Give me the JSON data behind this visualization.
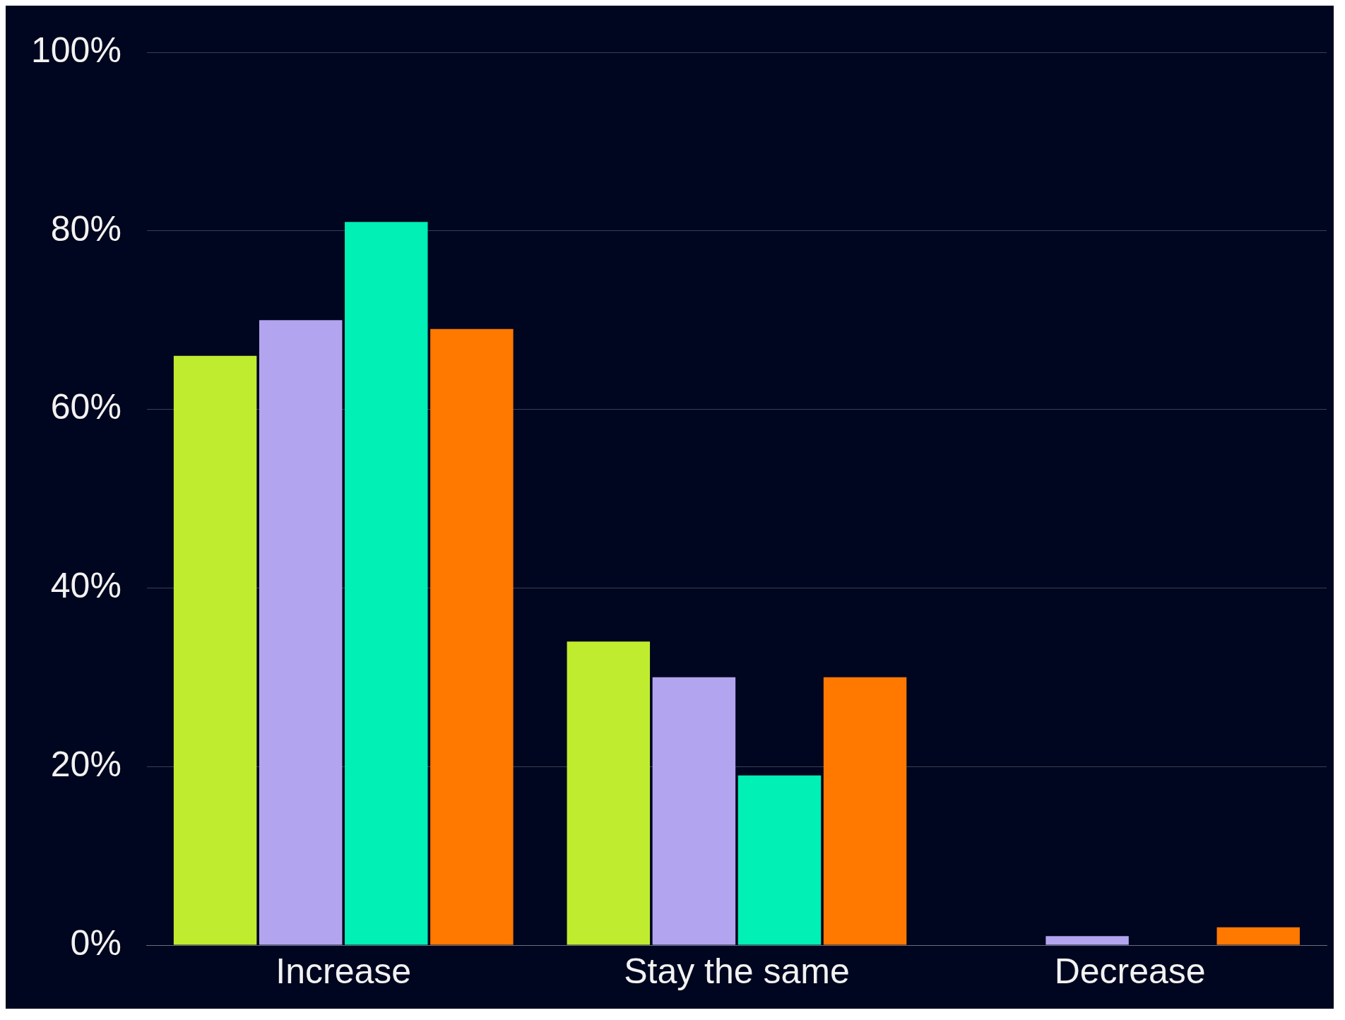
{
  "chart_data": {
    "type": "bar",
    "categories": [
      "Increase",
      "Stay the same",
      "Decrease"
    ],
    "series": [
      {
        "color": "#c0ec2f",
        "values": [
          66,
          34,
          0
        ]
      },
      {
        "color": "#b3a4f0",
        "values": [
          70,
          30,
          1
        ]
      },
      {
        "color": "#00f0b5",
        "values": [
          81,
          19,
          0
        ]
      },
      {
        "color": "#ff7800",
        "values": [
          69,
          30,
          2
        ]
      }
    ],
    "ylim": [
      0,
      100
    ],
    "yticks": [
      {
        "value": 0,
        "label": "0%"
      },
      {
        "value": 20,
        "label": "20%"
      },
      {
        "value": 40,
        "label": "40%"
      },
      {
        "value": 60,
        "label": "60%"
      },
      {
        "value": 80,
        "label": "80%"
      },
      {
        "value": 100,
        "label": "100%"
      }
    ],
    "grid": "y",
    "legend": false
  }
}
